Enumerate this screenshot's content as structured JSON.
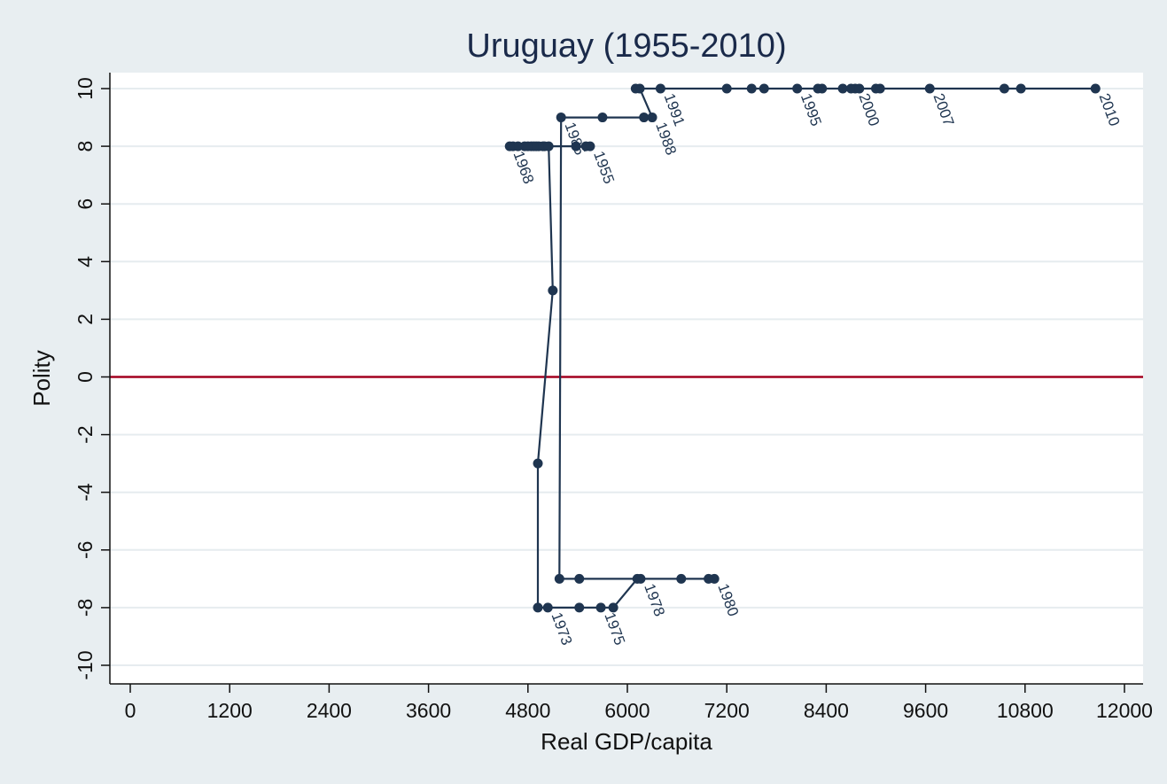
{
  "chart_data": {
    "type": "line",
    "title": "Uruguay (1955-2010)",
    "xlabel": "Real GDP/capita",
    "ylabel": "Polity",
    "xlim": [
      0,
      12000
    ],
    "ylim": [
      -10,
      10
    ],
    "xticks": [
      "0",
      "1200",
      "2400",
      "3600",
      "4800",
      "6000",
      "7200",
      "8400",
      "9600",
      "10800",
      "12000"
    ],
    "yticks": [
      "10",
      "8",
      "6",
      "4",
      "2",
      "0",
      "-2",
      "-4",
      "-6",
      "-8",
      "-10"
    ],
    "grid": true,
    "reference_line": {
      "y": 0,
      "color": "#a3001f"
    },
    "series": [
      {
        "color": "#1f3550",
        "points": [
          {
            "x": 5550,
            "y": 8,
            "label": "1955"
          },
          {
            "x": 5500,
            "y": 8
          },
          {
            "x": 5380,
            "y": 8
          },
          {
            "x": 4980,
            "y": 8
          },
          {
            "x": 4900,
            "y": 8
          },
          {
            "x": 4760,
            "y": 8
          },
          {
            "x": 4840,
            "y": 8
          },
          {
            "x": 5000,
            "y": 8
          },
          {
            "x": 4930,
            "y": 8
          },
          {
            "x": 4870,
            "y": 8
          },
          {
            "x": 4620,
            "y": 8
          },
          {
            "x": 4680,
            "y": 8
          },
          {
            "x": 4580,
            "y": 8,
            "label": "1968"
          },
          {
            "x": 4800,
            "y": 8
          },
          {
            "x": 5050,
            "y": 8
          },
          {
            "x": 5100,
            "y": 3
          },
          {
            "x": 4920,
            "y": -3
          },
          {
            "x": 4920,
            "y": -8
          },
          {
            "x": 5040,
            "y": -8,
            "label": "1973"
          },
          {
            "x": 5420,
            "y": -8
          },
          {
            "x": 5680,
            "y": -8,
            "label": "1975"
          },
          {
            "x": 5830,
            "y": -8
          },
          {
            "x": 6120,
            "y": -7
          },
          {
            "x": 6160,
            "y": -7,
            "label": "1978"
          },
          {
            "x": 6650,
            "y": -7
          },
          {
            "x": 7050,
            "y": -7,
            "label": "1980"
          },
          {
            "x": 6980,
            "y": -7
          },
          {
            "x": 5420,
            "y": -7
          },
          {
            "x": 5180,
            "y": -7
          },
          {
            "x": 5200,
            "y": 9,
            "label": "1985"
          },
          {
            "x": 5700,
            "y": 9
          },
          {
            "x": 6200,
            "y": 9
          },
          {
            "x": 6300,
            "y": 9,
            "label": "1988"
          },
          {
            "x": 6150,
            "y": 10
          },
          {
            "x": 6100,
            "y": 10
          },
          {
            "x": 6400,
            "y": 10,
            "label": "1991"
          },
          {
            "x": 7200,
            "y": 10
          },
          {
            "x": 7500,
            "y": 10
          },
          {
            "x": 7650,
            "y": 10
          },
          {
            "x": 8050,
            "y": 10,
            "label": "1995"
          },
          {
            "x": 8300,
            "y": 10
          },
          {
            "x": 8350,
            "y": 10
          },
          {
            "x": 8600,
            "y": 10
          },
          {
            "x": 8750,
            "y": 10,
            "label": "2000"
          },
          {
            "x": 8700,
            "y": 10
          },
          {
            "x": 8800,
            "y": 10
          },
          {
            "x": 9000,
            "y": 10
          },
          {
            "x": 9050,
            "y": 10
          },
          {
            "x": 9650,
            "y": 10,
            "label": "2007"
          },
          {
            "x": 10550,
            "y": 10
          },
          {
            "x": 10750,
            "y": 10
          },
          {
            "x": 11650,
            "y": 10,
            "label": "2010"
          }
        ]
      }
    ]
  }
}
